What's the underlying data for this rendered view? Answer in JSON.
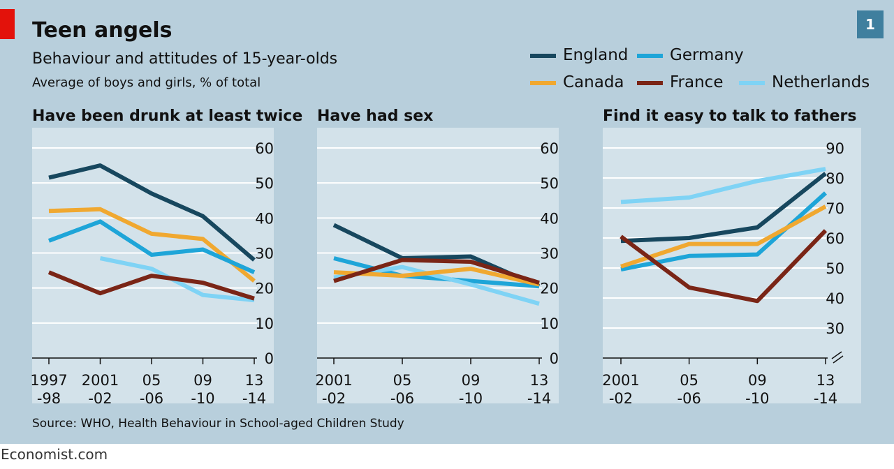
{
  "title": "Teen angels",
  "subtitle": "Behaviour and attitudes of 15-year-olds",
  "subsubtitle": "Average of boys and girls, % of total",
  "badge": "1",
  "source": "Source: WHO, Health Behaviour in School-aged Children Study",
  "footer": "Economist.com",
  "colors": {
    "England": "#17475e",
    "Germany": "#1ea5d8",
    "Canada": "#f0a830",
    "France": "#7a2516",
    "Netherlands": "#7fd3f5",
    "panel": "#d3e2ea",
    "background": "#b8cfdc"
  },
  "legend": [
    "England",
    "Germany",
    "Canada",
    "France",
    "Netherlands"
  ],
  "chart_data": [
    {
      "type": "line",
      "title": "Have been drunk at least twice",
      "categories": [
        [
          "1997",
          "-98"
        ],
        [
          "2001",
          "-02"
        ],
        [
          "05",
          "-06"
        ],
        [
          "09",
          "-10"
        ],
        [
          "13",
          "-14"
        ]
      ],
      "ylim": [
        0,
        60
      ],
      "yticks": [
        0,
        10,
        20,
        30,
        40,
        50,
        60
      ],
      "axis_break": false,
      "grid": true,
      "series": [
        {
          "name": "England",
          "values": [
            51.5,
            55,
            47,
            40.5,
            28
          ]
        },
        {
          "name": "Canada",
          "values": [
            42,
            42.5,
            35.5,
            34,
            22
          ]
        },
        {
          "name": "Germany",
          "values": [
            33.5,
            39,
            29.5,
            31,
            24.5
          ]
        },
        {
          "name": "Netherlands",
          "values": [
            null,
            28.5,
            25.5,
            18,
            16.5
          ]
        },
        {
          "name": "France",
          "values": [
            24.5,
            18.5,
            23.5,
            21.5,
            17
          ]
        }
      ]
    },
    {
      "type": "line",
      "title": "Have had sex",
      "categories": [
        [
          "2001",
          "-02"
        ],
        [
          "05",
          "-06"
        ],
        [
          "09",
          "-10"
        ],
        [
          "13",
          "-14"
        ]
      ],
      "ylim": [
        0,
        60
      ],
      "yticks": [
        0,
        10,
        20,
        30,
        40,
        50,
        60
      ],
      "axis_break": false,
      "grid": true,
      "series": [
        {
          "name": "England",
          "values": [
            38,
            28.5,
            29,
            20.5
          ]
        },
        {
          "name": "Germany",
          "values": [
            28.5,
            23.5,
            22,
            20.5
          ]
        },
        {
          "name": "Netherlands",
          "values": [
            23,
            26,
            21,
            15.5
          ]
        },
        {
          "name": "Canada",
          "values": [
            24.5,
            23.5,
            25.5,
            21
          ]
        },
        {
          "name": "France",
          "values": [
            22,
            28,
            27.5,
            21.5
          ]
        }
      ]
    },
    {
      "type": "line",
      "title": "Find it easy to talk to fathers",
      "categories": [
        [
          "2001",
          "-02"
        ],
        [
          "05",
          "-06"
        ],
        [
          "09",
          "-10"
        ],
        [
          "13",
          "-14"
        ]
      ],
      "ylim": [
        20,
        90
      ],
      "yticks": [
        30,
        40,
        50,
        60,
        70,
        80,
        90
      ],
      "axis_break": true,
      "grid": true,
      "series": [
        {
          "name": "Netherlands",
          "values": [
            72,
            73.5,
            79,
            83
          ]
        },
        {
          "name": "England",
          "values": [
            59,
            60,
            63.5,
            81.5
          ]
        },
        {
          "name": "Germany",
          "values": [
            49.5,
            54,
            54.5,
            75
          ]
        },
        {
          "name": "Canada",
          "values": [
            50.5,
            58,
            58,
            70.5
          ]
        },
        {
          "name": "France",
          "values": [
            60.5,
            43.5,
            39,
            62.5
          ]
        }
      ]
    }
  ]
}
